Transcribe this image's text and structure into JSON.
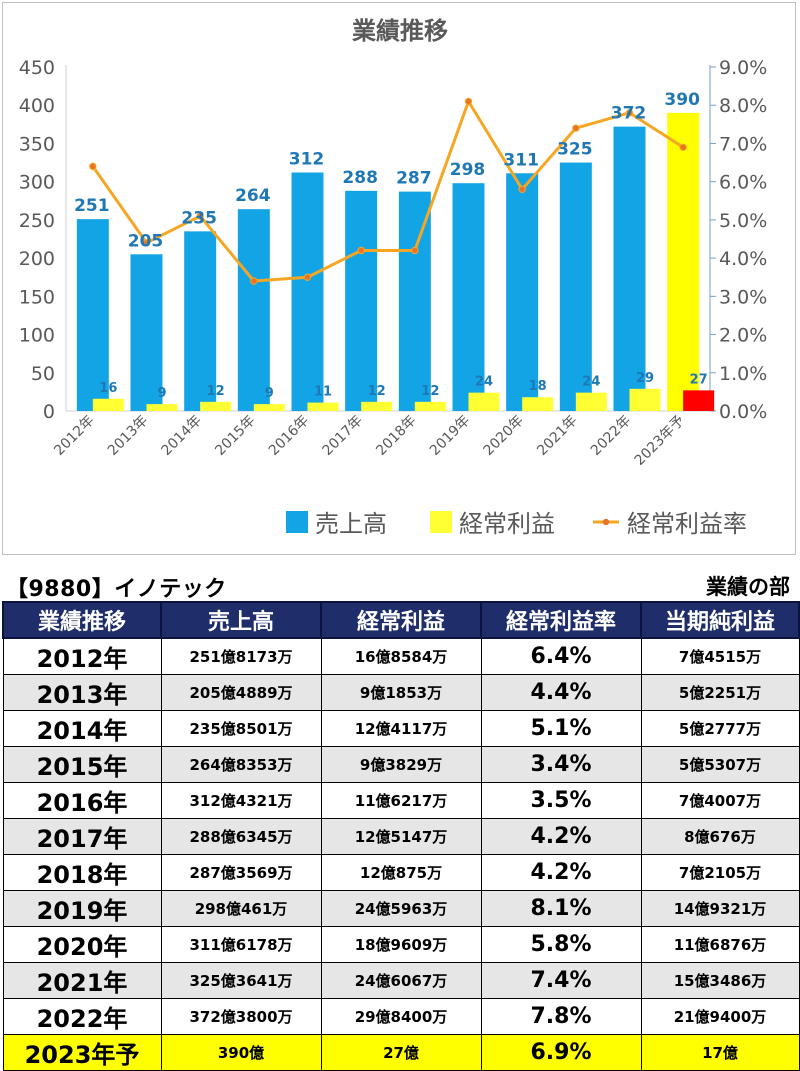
{
  "chart_data": {
    "type": "bar",
    "title": "業績推移",
    "categories": [
      "2012年",
      "2013年",
      "2014年",
      "2015年",
      "2016年",
      "2017年",
      "2018年",
      "2019年",
      "2020年",
      "2021年",
      "2022年",
      "2023年予"
    ],
    "series": [
      {
        "name": "売上高",
        "kind": "bar",
        "axis": "left",
        "color": "#13a4e6",
        "values": [
          251,
          205,
          235,
          264,
          312,
          288,
          287,
          298,
          311,
          325,
          372,
          390
        ],
        "forecast_color": "#ffff00"
      },
      {
        "name": "経常利益",
        "kind": "bar",
        "axis": "left",
        "color": "#ffff33",
        "values": [
          16,
          9,
          12,
          9,
          11,
          12,
          12,
          24,
          18,
          24,
          29,
          27
        ],
        "forecast_color": "#ff0000"
      },
      {
        "name": "経常利益率",
        "kind": "line",
        "axis": "right",
        "color": "#f5a623",
        "values": [
          6.4,
          4.4,
          5.1,
          3.4,
          3.5,
          4.2,
          4.2,
          8.1,
          5.8,
          7.4,
          7.8,
          6.9
        ]
      }
    ],
    "y_left": {
      "min": 0,
      "max": 450,
      "ticks": [
        "0",
        "50",
        "100",
        "150",
        "200",
        "250",
        "300",
        "350",
        "400",
        "450"
      ]
    },
    "y_right": {
      "min": 0,
      "max": 9,
      "ticks": [
        "0.0%",
        "1.0%",
        "2.0%",
        "3.0%",
        "4.0%",
        "5.0%",
        "6.0%",
        "7.0%",
        "8.0%",
        "9.0%"
      ]
    },
    "legend": {
      "placement": "bottom-right",
      "labels": [
        "売上高",
        "経常利益",
        "経常利益率"
      ]
    },
    "grid": false
  },
  "header": {
    "company": "【9880】イノテック",
    "section": "業績の部"
  },
  "table": {
    "columns": [
      "業績推移",
      "売上高",
      "経常利益",
      "経常利益率",
      "当期純利益"
    ],
    "rows": [
      {
        "year": "2012年",
        "sales": "251億8173万",
        "ordinary": "16億8584万",
        "rate": "6.4%",
        "net": "7億4515万"
      },
      {
        "year": "2013年",
        "sales": "205億4889万",
        "ordinary": "9億1853万",
        "rate": "4.4%",
        "net": "5億2251万"
      },
      {
        "year": "2014年",
        "sales": "235億8501万",
        "ordinary": "12億4117万",
        "rate": "5.1%",
        "net": "5億2777万"
      },
      {
        "year": "2015年",
        "sales": "264億8353万",
        "ordinary": "9億3829万",
        "rate": "3.4%",
        "net": "5億5307万"
      },
      {
        "year": "2016年",
        "sales": "312億4321万",
        "ordinary": "11億6217万",
        "rate": "3.5%",
        "net": "7億4007万"
      },
      {
        "year": "2017年",
        "sales": "288億6345万",
        "ordinary": "12億5147万",
        "rate": "4.2%",
        "net": "8億676万"
      },
      {
        "year": "2018年",
        "sales": "287億3569万",
        "ordinary": "12億875万",
        "rate": "4.2%",
        "net": "7億2105万"
      },
      {
        "year": "2019年",
        "sales": "298億461万",
        "ordinary": "24億5963万",
        "rate": "8.1%",
        "net": "14億9321万"
      },
      {
        "year": "2020年",
        "sales": "311億6178万",
        "ordinary": "18億9609万",
        "rate": "5.8%",
        "net": "11億6876万"
      },
      {
        "year": "2021年",
        "sales": "325億3641万",
        "ordinary": "24億6067万",
        "rate": "7.4%",
        "net": "15億3486万"
      },
      {
        "year": "2022年",
        "sales": "372億3800万",
        "ordinary": "29億8400万",
        "rate": "7.8%",
        "net": "21億9400万"
      },
      {
        "year": "2023年予",
        "sales": "390億",
        "ordinary": "27億",
        "rate": "6.9%",
        "net": "17億"
      }
    ]
  }
}
